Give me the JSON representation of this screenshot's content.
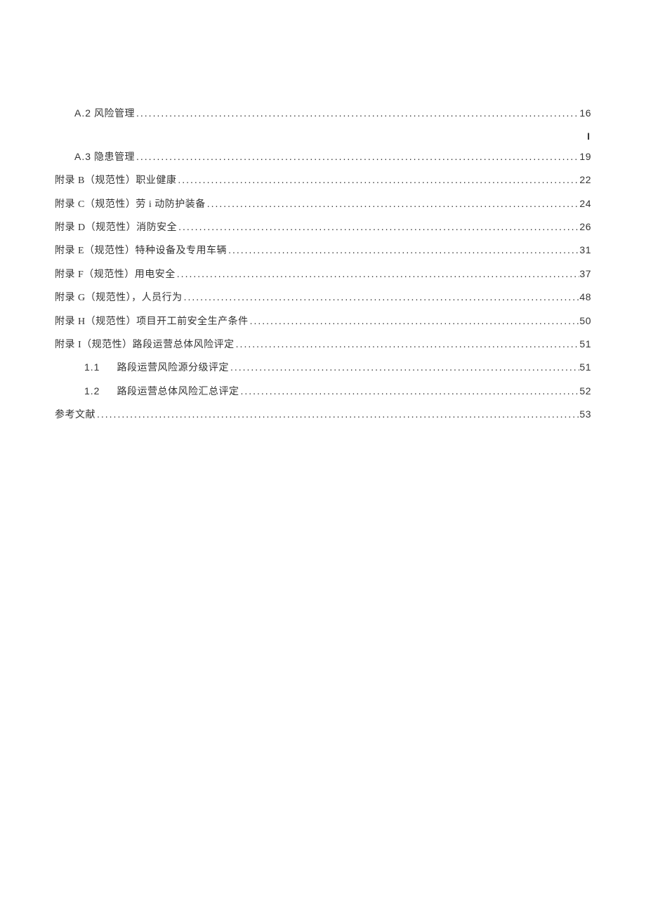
{
  "toc": {
    "text_color": "#333333",
    "background_color": "#ffffff",
    "fontsize": 14,
    "entries": [
      {
        "indent": 1,
        "num": "A.2",
        "label": "风险管理",
        "page": "16",
        "num_wide": false
      },
      {
        "indent": 0,
        "separator": "I"
      },
      {
        "indent": 1,
        "num": "A.3",
        "label": "隐患管理",
        "page": "19",
        "num_wide": false,
        "trailing_space": true
      },
      {
        "indent": 0,
        "num": "",
        "label": "附录 B（规范性）职业健康",
        "page": "22",
        "trailing_space": true
      },
      {
        "indent": 0,
        "num": "",
        "label": "附录 C（规范性）劳 i 动防护装备",
        "page": "24",
        "trailing_space": true
      },
      {
        "indent": 0,
        "num": "",
        "label": "附录 D（规范性）消防安全",
        "page": "26",
        "trailing_space": true
      },
      {
        "indent": 0,
        "num": "",
        "label": "附录 E（规范性）特种设备及专用车辆",
        "page": "31"
      },
      {
        "indent": 0,
        "num": "",
        "label": "附录 F（规范性）用电安全",
        "page": "37",
        "trailing_space": true
      },
      {
        "indent": 0,
        "num": "",
        "label": "附录 G（规范性），人员行为",
        "page": "48",
        "trailing_space": true
      },
      {
        "indent": 0,
        "num": "",
        "label": "附录 H（规范性）项目开工前安全生产条件",
        "page": "50"
      },
      {
        "indent": 0,
        "num": "",
        "label": "附录 I（规范性）路段运营总体风险评定",
        "page": "51"
      },
      {
        "indent": 2,
        "num": "1.1",
        "label": "路段运营风险源分级评定",
        "page": "51",
        "num_wide": true
      },
      {
        "indent": 2,
        "num": "1.2",
        "label": "路段运营总体风险汇总评定",
        "page": "52",
        "num_wide": true
      },
      {
        "indent": 0,
        "num": "",
        "label": "参考文献",
        "page": "53",
        "trailing_space": true
      }
    ]
  }
}
